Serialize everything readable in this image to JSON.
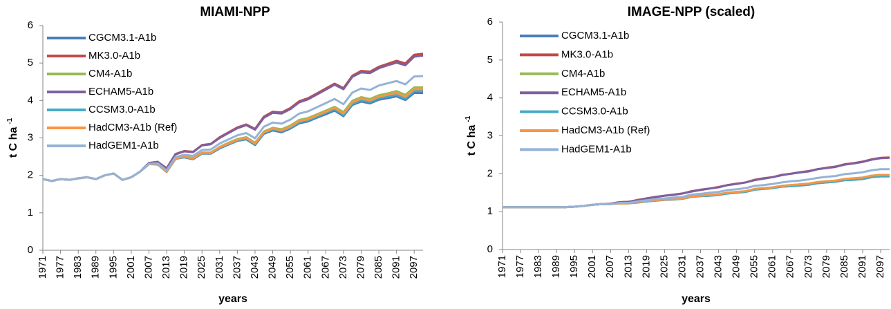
{
  "chart_data": [
    {
      "type": "line",
      "title": "MIAMI-NPP",
      "xlabel": "years",
      "ylabel": "t C ha",
      "ylabel_superscript": "-1",
      "xlim": [
        1971,
        2100
      ],
      "xticks": [
        1971,
        1977,
        1983,
        1989,
        1995,
        2001,
        2007,
        2013,
        2019,
        2025,
        2031,
        2037,
        2043,
        2049,
        2055,
        2061,
        2067,
        2073,
        2079,
        2085,
        2091,
        2097
      ],
      "ylim": [
        0,
        6
      ],
      "yticks": [
        0,
        1,
        2,
        3,
        4,
        5,
        6
      ],
      "grid": false,
      "legend": "upper left",
      "x": [
        1971,
        1974,
        1977,
        1980,
        1983,
        1986,
        1989,
        1992,
        1995,
        1998,
        2001,
        2004,
        2007,
        2010,
        2013,
        2016,
        2019,
        2022,
        2025,
        2028,
        2031,
        2034,
        2037,
        2040,
        2043,
        2046,
        2049,
        2052,
        2055,
        2058,
        2061,
        2064,
        2067,
        2070,
        2073,
        2076,
        2079,
        2082,
        2085,
        2088,
        2091,
        2094,
        2097,
        2100
      ],
      "series": [
        {
          "name": "CGCM3.1-A1b",
          "color": "#4a7ebb",
          "values": [
            1.9,
            1.85,
            1.9,
            1.88,
            1.92,
            1.95,
            1.9,
            2.0,
            2.05,
            1.88,
            1.95,
            2.1,
            2.3,
            2.29,
            2.09,
            2.44,
            2.48,
            2.43,
            2.58,
            2.58,
            2.72,
            2.82,
            2.92,
            2.96,
            2.81,
            3.11,
            3.2,
            3.15,
            3.25,
            3.39,
            3.44,
            3.54,
            3.63,
            3.73,
            3.58,
            3.88,
            3.97,
            3.92,
            4.02,
            4.06,
            4.11,
            4.01,
            4.2,
            4.2
          ]
        },
        {
          "name": "MK3.0-A1b",
          "color": "#be4b48",
          "values": [
            1.9,
            1.85,
            1.9,
            1.88,
            1.92,
            1.95,
            1.9,
            2.0,
            2.05,
            1.88,
            1.95,
            2.1,
            2.33,
            2.36,
            2.19,
            2.57,
            2.65,
            2.63,
            2.81,
            2.84,
            3.02,
            3.15,
            3.28,
            3.36,
            3.24,
            3.57,
            3.7,
            3.68,
            3.8,
            3.98,
            4.06,
            4.19,
            4.32,
            4.45,
            4.33,
            4.66,
            4.79,
            4.77,
            4.9,
            4.98,
            5.06,
            4.99,
            5.22,
            5.25
          ]
        },
        {
          "name": "CM4-A1b",
          "color": "#98b954",
          "values": [
            1.9,
            1.85,
            1.9,
            1.88,
            1.92,
            1.95,
            1.9,
            2.0,
            2.05,
            1.88,
            1.95,
            2.1,
            2.3,
            2.3,
            2.1,
            2.46,
            2.51,
            2.46,
            2.61,
            2.61,
            2.76,
            2.87,
            2.97,
            3.02,
            2.87,
            3.17,
            3.27,
            3.23,
            3.33,
            3.48,
            3.53,
            3.63,
            3.73,
            3.83,
            3.69,
            3.99,
            4.09,
            4.04,
            4.14,
            4.19,
            4.25,
            4.15,
            4.35,
            4.35
          ]
        },
        {
          "name": "ECHAM5-A1b",
          "color": "#7d60a0",
          "values": [
            1.9,
            1.85,
            1.9,
            1.88,
            1.92,
            1.95,
            1.9,
            2.0,
            2.05,
            1.88,
            1.95,
            2.1,
            2.33,
            2.36,
            2.18,
            2.56,
            2.64,
            2.62,
            2.8,
            2.83,
            3.0,
            3.13,
            3.26,
            3.34,
            3.22,
            3.54,
            3.67,
            3.65,
            3.77,
            3.95,
            4.03,
            4.16,
            4.29,
            4.42,
            4.3,
            4.63,
            4.75,
            4.73,
            4.86,
            4.94,
            5.01,
            4.94,
            5.17,
            5.2
          ]
        },
        {
          "name": "CCSM3.0-A1b",
          "color": "#46aac5",
          "values": [
            1.9,
            1.85,
            1.9,
            1.88,
            1.92,
            1.95,
            1.9,
            2.0,
            2.05,
            1.88,
            1.95,
            2.1,
            2.3,
            2.3,
            2.1,
            2.44,
            2.49,
            2.44,
            2.59,
            2.59,
            2.74,
            2.83,
            2.93,
            2.98,
            2.83,
            3.13,
            3.23,
            3.18,
            3.27,
            3.42,
            3.47,
            3.57,
            3.67,
            3.77,
            3.61,
            3.91,
            4.01,
            3.96,
            4.06,
            4.11,
            4.15,
            4.05,
            4.25,
            4.25
          ]
        },
        {
          "name": "HadCM3-A1b (Ref)",
          "color": "#f79646",
          "values": [
            1.9,
            1.85,
            1.9,
            1.88,
            1.92,
            1.95,
            1.9,
            2.0,
            2.05,
            1.88,
            1.95,
            2.1,
            2.3,
            2.3,
            2.1,
            2.45,
            2.5,
            2.45,
            2.6,
            2.6,
            2.75,
            2.85,
            2.95,
            3.0,
            2.85,
            3.15,
            3.25,
            3.2,
            3.3,
            3.45,
            3.5,
            3.6,
            3.7,
            3.8,
            3.65,
            3.95,
            4.05,
            4.0,
            4.1,
            4.15,
            4.2,
            4.1,
            4.3,
            4.3
          ]
        },
        {
          "name": "HadGEM1-A1b",
          "color": "#95b3d7",
          "values": [
            1.9,
            1.85,
            1.9,
            1.88,
            1.92,
            1.95,
            1.9,
            2.0,
            2.05,
            1.88,
            1.95,
            2.1,
            2.31,
            2.32,
            2.13,
            2.49,
            2.55,
            2.52,
            2.68,
            2.69,
            2.85,
            2.96,
            3.07,
            3.13,
            2.99,
            3.3,
            3.41,
            3.38,
            3.49,
            3.65,
            3.71,
            3.82,
            3.93,
            4.04,
            3.9,
            4.21,
            4.32,
            4.28,
            4.4,
            4.46,
            4.52,
            4.43,
            4.64,
            4.65
          ]
        }
      ]
    },
    {
      "type": "line",
      "title": "IMAGE-NPP (scaled)",
      "xlabel": "years",
      "ylabel": "t C ha",
      "ylabel_superscript": "-1",
      "xlim": [
        1971,
        2100
      ],
      "xticks": [
        1971,
        1977,
        1983,
        1989,
        1995,
        2001,
        2007,
        2013,
        2019,
        2025,
        2031,
        2037,
        2043,
        2049,
        2055,
        2061,
        2067,
        2073,
        2079,
        2085,
        2091,
        2097
      ],
      "ylim": [
        0,
        6
      ],
      "yticks": [
        0,
        1,
        2,
        3,
        4,
        5,
        6
      ],
      "grid": false,
      "legend": "upper left",
      "x": [
        1971,
        1974,
        1977,
        1980,
        1983,
        1986,
        1989,
        1992,
        1995,
        1998,
        2001,
        2004,
        2007,
        2010,
        2013,
        2016,
        2019,
        2022,
        2025,
        2028,
        2031,
        2034,
        2037,
        2040,
        2043,
        2046,
        2049,
        2052,
        2055,
        2058,
        2061,
        2064,
        2067,
        2070,
        2073,
        2076,
        2079,
        2082,
        2085,
        2088,
        2091,
        2094,
        2097,
        2100
      ],
      "series": [
        {
          "name": "CGCM3.1-A1b",
          "color": "#4a7ebb",
          "values": [
            1.12,
            1.12,
            1.12,
            1.12,
            1.12,
            1.12,
            1.12,
            1.12,
            1.13,
            1.15,
            1.18,
            1.2,
            1.2,
            1.22,
            1.22,
            1.24,
            1.27,
            1.29,
            1.31,
            1.32,
            1.34,
            1.39,
            1.41,
            1.42,
            1.44,
            1.48,
            1.5,
            1.52,
            1.58,
            1.6,
            1.62,
            1.66,
            1.67,
            1.69,
            1.71,
            1.75,
            1.77,
            1.79,
            1.83,
            1.84,
            1.86,
            1.91,
            1.93,
            1.93
          ]
        },
        {
          "name": "MK3.0-A1b",
          "color": "#be4b48",
          "values": [
            1.12,
            1.12,
            1.12,
            1.12,
            1.12,
            1.12,
            1.12,
            1.12,
            1.13,
            1.15,
            1.18,
            1.2,
            1.21,
            1.25,
            1.26,
            1.31,
            1.35,
            1.39,
            1.42,
            1.45,
            1.48,
            1.54,
            1.58,
            1.61,
            1.65,
            1.7,
            1.74,
            1.77,
            1.84,
            1.88,
            1.91,
            1.97,
            2.0,
            2.04,
            2.07,
            2.12,
            2.16,
            2.19,
            2.25,
            2.28,
            2.32,
            2.38,
            2.42,
            2.43
          ]
        },
        {
          "name": "CM4-A1b",
          "color": "#98b954",
          "values": [
            1.12,
            1.12,
            1.12,
            1.12,
            1.12,
            1.12,
            1.12,
            1.12,
            1.13,
            1.15,
            1.18,
            1.2,
            1.2,
            1.22,
            1.22,
            1.25,
            1.28,
            1.3,
            1.32,
            1.33,
            1.35,
            1.4,
            1.42,
            1.44,
            1.46,
            1.5,
            1.52,
            1.54,
            1.6,
            1.62,
            1.64,
            1.68,
            1.7,
            1.72,
            1.74,
            1.78,
            1.8,
            1.82,
            1.86,
            1.88,
            1.9,
            1.95,
            1.97,
            1.97
          ]
        },
        {
          "name": "ECHAM5-A1b",
          "color": "#7d60a0",
          "values": [
            1.12,
            1.12,
            1.12,
            1.12,
            1.12,
            1.12,
            1.12,
            1.12,
            1.13,
            1.15,
            1.18,
            1.2,
            1.21,
            1.25,
            1.26,
            1.3,
            1.35,
            1.38,
            1.42,
            1.44,
            1.48,
            1.53,
            1.57,
            1.61,
            1.64,
            1.7,
            1.73,
            1.77,
            1.83,
            1.87,
            1.91,
            1.96,
            2.0,
            2.03,
            2.06,
            2.12,
            2.15,
            2.18,
            2.24,
            2.27,
            2.31,
            2.37,
            2.41,
            2.42
          ]
        },
        {
          "name": "CCSM3.0-A1b",
          "color": "#46aac5",
          "values": [
            1.12,
            1.12,
            1.12,
            1.12,
            1.12,
            1.12,
            1.12,
            1.12,
            1.13,
            1.15,
            1.18,
            1.2,
            1.2,
            1.22,
            1.22,
            1.24,
            1.27,
            1.29,
            1.31,
            1.32,
            1.34,
            1.39,
            1.41,
            1.42,
            1.44,
            1.48,
            1.5,
            1.52,
            1.58,
            1.6,
            1.62,
            1.66,
            1.67,
            1.69,
            1.71,
            1.75,
            1.77,
            1.79,
            1.83,
            1.84,
            1.86,
            1.91,
            1.93,
            1.93
          ]
        },
        {
          "name": "HadCM3-A1b (Ref)",
          "color": "#f79646",
          "values": [
            1.12,
            1.12,
            1.12,
            1.12,
            1.12,
            1.12,
            1.12,
            1.12,
            1.13,
            1.15,
            1.18,
            1.2,
            1.2,
            1.22,
            1.22,
            1.25,
            1.28,
            1.3,
            1.32,
            1.33,
            1.35,
            1.4,
            1.42,
            1.44,
            1.46,
            1.5,
            1.52,
            1.54,
            1.6,
            1.62,
            1.64,
            1.68,
            1.7,
            1.72,
            1.74,
            1.78,
            1.8,
            1.82,
            1.86,
            1.88,
            1.9,
            1.95,
            1.97,
            1.97
          ]
        },
        {
          "name": "HadGEM1-A1b",
          "color": "#95b3d7",
          "values": [
            1.12,
            1.12,
            1.12,
            1.12,
            1.12,
            1.12,
            1.12,
            1.12,
            1.13,
            1.15,
            1.18,
            1.2,
            1.2,
            1.23,
            1.23,
            1.27,
            1.3,
            1.33,
            1.35,
            1.37,
            1.39,
            1.45,
            1.47,
            1.5,
            1.52,
            1.57,
            1.59,
            1.62,
            1.68,
            1.7,
            1.73,
            1.77,
            1.8,
            1.82,
            1.85,
            1.89,
            1.92,
            1.94,
            1.99,
            2.01,
            2.04,
            2.09,
            2.12,
            2.12
          ]
        }
      ]
    }
  ]
}
